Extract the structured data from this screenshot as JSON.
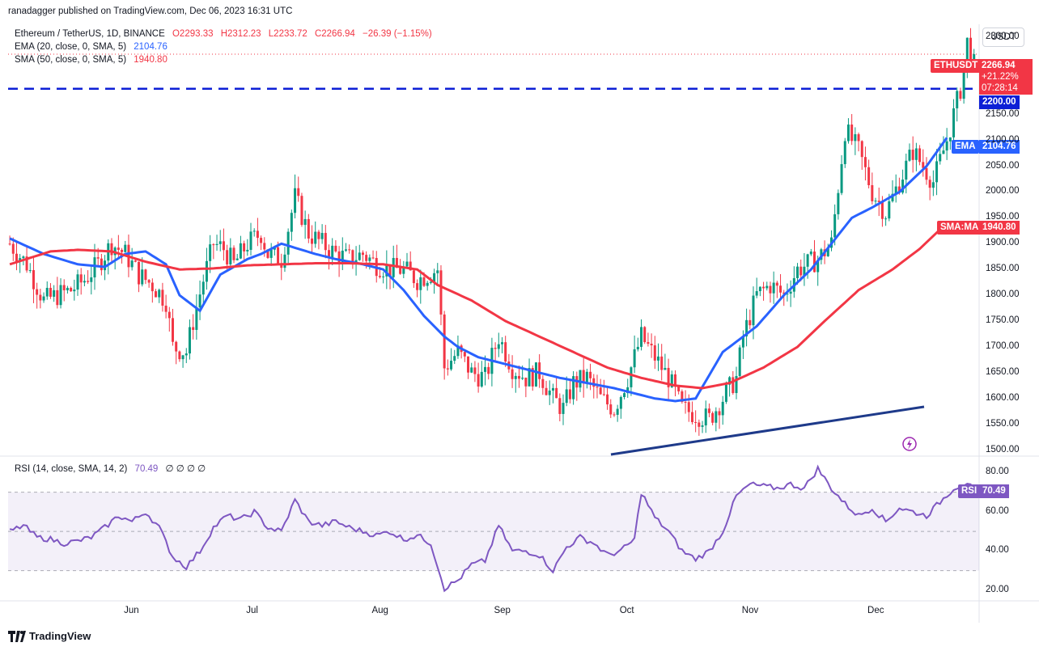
{
  "publish_line": "ranadagger published on TradingView.com, Dec 06, 2023 16:31 UTC",
  "header": {
    "symbol": "Ethereum / TetherUS, 1D, BINANCE",
    "open": "O2293.33",
    "high": "H2312.23",
    "low": "L2233.72",
    "close": "C2266.94",
    "change": "−26.39 (−1.15%)"
  },
  "indicators": {
    "ema": {
      "label": "EMA (20, close, 0, SMA, 5)",
      "value": "2104.76",
      "color": "#2962ff"
    },
    "sma": {
      "label": "SMA (50, close, 0, SMA, 5)",
      "value": "1940.80",
      "color": "#f23645"
    }
  },
  "currency_button": "USDT",
  "price_tags": {
    "ethusdt_label": "ETHUSDT",
    "price": "2266.94",
    "change_pct": "+21.22%",
    "countdown": "07:28:14",
    "level": "2200.00",
    "ema_label": "EMA",
    "ema_value": "2104.76",
    "sma_label": "SMA:MA",
    "sma_value": "1940.80"
  },
  "rsi": {
    "label": "RSI (14, close, SMA, 14, 2)",
    "value": "70.49",
    "extras": "∅ ∅ ∅ ∅",
    "tag_label": "RSI",
    "tag_value": "70.49",
    "color": "#7e57c2"
  },
  "branding": "TradingView",
  "colors": {
    "up": "#089981",
    "down": "#f23645",
    "level_line": "#0d1fd6",
    "trendline": "#1e3a8a"
  },
  "chart_data": [
    {
      "type": "candlestick",
      "title": "Ethereum / TetherUS, 1D, BINANCE",
      "y_ticks": [
        "2300.00",
        "2150.00",
        "2100.00",
        "2050.00",
        "2000.00",
        "1950.00",
        "1900.00",
        "1850.00",
        "1800.00",
        "1750.00",
        "1700.00",
        "1650.00",
        "1600.00",
        "1550.00",
        "1500.00"
      ],
      "ylim": [
        1490,
        2325
      ],
      "x_ticks": [
        "Jun",
        "Jul",
        "Aug",
        "Sep",
        "Oct",
        "Nov",
        "Dec"
      ],
      "horizontal_level": 2200,
      "trendline": {
        "from": [
          "Sep 21",
          1490
        ],
        "to": [
          "Dec 08",
          1572
        ]
      },
      "series": [
        {
          "name": "EMA",
          "description": "EMA (20, close, 0, SMA, 5)",
          "last": 2104.76,
          "waypoints": [
            [
              0,
              1910
            ],
            [
              10,
              1880
            ],
            [
              20,
              1860
            ],
            [
              28,
              1855
            ],
            [
              34,
              1880
            ],
            [
              40,
              1885
            ],
            [
              46,
              1860
            ],
            [
              50,
              1800
            ],
            [
              56,
              1770
            ],
            [
              62,
              1840
            ],
            [
              70,
              1870
            ],
            [
              74,
              1880
            ],
            [
              80,
              1900
            ],
            [
              90,
              1880
            ],
            [
              96,
              1870
            ],
            [
              104,
              1860
            ],
            [
              110,
              1850
            ],
            [
              116,
              1810
            ],
            [
              122,
              1760
            ],
            [
              128,
              1720
            ],
            [
              132,
              1700
            ],
            [
              138,
              1680
            ],
            [
              144,
              1670
            ],
            [
              150,
              1660
            ],
            [
              156,
              1650
            ],
            [
              162,
              1640
            ],
            [
              170,
              1630
            ],
            [
              178,
              1620
            ],
            [
              184,
              1610
            ],
            [
              190,
              1600
            ],
            [
              196,
              1595
            ],
            [
              202,
              1600
            ],
            [
              210,
              1690
            ],
            [
              220,
              1740
            ],
            [
              228,
              1800
            ],
            [
              236,
              1850
            ],
            [
              242,
              1900
            ],
            [
              248,
              1950
            ],
            [
              254,
              1970
            ],
            [
              262,
              2000
            ],
            [
              270,
              2050
            ],
            [
              276,
              2105
            ]
          ]
        },
        {
          "name": "SMA:MA",
          "description": "SMA (50, close, 0, SMA, 5)",
          "last": 1940.8,
          "waypoints": [
            [
              0,
              1860
            ],
            [
              12,
              1885
            ],
            [
              20,
              1888
            ],
            [
              30,
              1885
            ],
            [
              40,
              1865
            ],
            [
              50,
              1850
            ],
            [
              60,
              1852
            ],
            [
              70,
              1858
            ],
            [
              80,
              1860
            ],
            [
              90,
              1862
            ],
            [
              100,
              1862
            ],
            [
              110,
              1860
            ],
            [
              120,
              1850
            ],
            [
              126,
              1820
            ],
            [
              136,
              1790
            ],
            [
              146,
              1750
            ],
            [
              156,
              1720
            ],
            [
              166,
              1690
            ],
            [
              176,
              1660
            ],
            [
              186,
              1640
            ],
            [
              196,
              1625
            ],
            [
              204,
              1620
            ],
            [
              212,
              1630
            ],
            [
              222,
              1660
            ],
            [
              232,
              1700
            ],
            [
              240,
              1750
            ],
            [
              250,
              1810
            ],
            [
              260,
              1850
            ],
            [
              268,
              1890
            ],
            [
              276,
              1940
            ]
          ]
        }
      ],
      "candles_generated_from": "daily OHLC approximation following visible price path",
      "price_path": [
        [
          0,
          1900
        ],
        [
          5,
          1860
        ],
        [
          10,
          1790
        ],
        [
          14,
          1800
        ],
        [
          18,
          1810
        ],
        [
          22,
          1830
        ],
        [
          26,
          1860
        ],
        [
          30,
          1900
        ],
        [
          34,
          1880
        ],
        [
          38,
          1840
        ],
        [
          42,
          1820
        ],
        [
          46,
          1790
        ],
        [
          48,
          1700
        ],
        [
          52,
          1690
        ],
        [
          54,
          1750
        ],
        [
          57,
          1830
        ],
        [
          60,
          1900
        ],
        [
          63,
          1890
        ],
        [
          66,
          1860
        ],
        [
          70,
          1900
        ],
        [
          74,
          1920
        ],
        [
          76,
          1880
        ],
        [
          80,
          1870
        ],
        [
          84,
          1990
        ],
        [
          88,
          1920
        ],
        [
          92,
          1900
        ],
        [
          96,
          1880
        ],
        [
          100,
          1870
        ],
        [
          104,
          1880
        ],
        [
          108,
          1860
        ],
        [
          112,
          1850
        ],
        [
          116,
          1850
        ],
        [
          120,
          1830
        ],
        [
          126,
          1850
        ],
        [
          128,
          1660
        ],
        [
          132,
          1690
        ],
        [
          136,
          1650
        ],
        [
          140,
          1640
        ],
        [
          144,
          1720
        ],
        [
          148,
          1660
        ],
        [
          152,
          1640
        ],
        [
          156,
          1650
        ],
        [
          160,
          1600
        ],
        [
          163,
          1580
        ],
        [
          166,
          1630
        ],
        [
          170,
          1640
        ],
        [
          174,
          1600
        ],
        [
          178,
          1580
        ],
        [
          182,
          1640
        ],
        [
          186,
          1720
        ],
        [
          190,
          1680
        ],
        [
          194,
          1640
        ],
        [
          198,
          1580
        ],
        [
          202,
          1570
        ],
        [
          206,
          1560
        ],
        [
          210,
          1600
        ],
        [
          214,
          1640
        ],
        [
          216,
          1720
        ],
        [
          220,
          1800
        ],
        [
          224,
          1820
        ],
        [
          228,
          1800
        ],
        [
          232,
          1850
        ],
        [
          238,
          1870
        ],
        [
          242,
          1900
        ],
        [
          246,
          2120
        ],
        [
          250,
          2080
        ],
        [
          254,
          2000
        ],
        [
          258,
          1960
        ],
        [
          262,
          2020
        ],
        [
          266,
          2080
        ],
        [
          270,
          2040
        ],
        [
          272,
          2020
        ],
        [
          276,
          2100
        ],
        [
          280,
          2200
        ],
        [
          282,
          2290
        ],
        [
          284,
          2266
        ]
      ]
    },
    {
      "type": "line",
      "name": "RSI",
      "ylim": [
        15,
        88
      ],
      "y_ticks": [
        "80.00",
        "60.00",
        "40.00",
        "20.00"
      ],
      "band": [
        30,
        70
      ],
      "midline": 50,
      "last": 70.49,
      "waypoints": [
        [
          0,
          50
        ],
        [
          4,
          53
        ],
        [
          8,
          47
        ],
        [
          12,
          46
        ],
        [
          16,
          44
        ],
        [
          20,
          45
        ],
        [
          24,
          47
        ],
        [
          28,
          52
        ],
        [
          32,
          58
        ],
        [
          36,
          55
        ],
        [
          40,
          60
        ],
        [
          44,
          52
        ],
        [
          48,
          37
        ],
        [
          52,
          32
        ],
        [
          56,
          40
        ],
        [
          60,
          52
        ],
        [
          64,
          58
        ],
        [
          68,
          56
        ],
        [
          72,
          60
        ],
        [
          76,
          52
        ],
        [
          80,
          50
        ],
        [
          84,
          66
        ],
        [
          88,
          55
        ],
        [
          92,
          53
        ],
        [
          96,
          55
        ],
        [
          100,
          52
        ],
        [
          104,
          50
        ],
        [
          108,
          48
        ],
        [
          112,
          50
        ],
        [
          116,
          46
        ],
        [
          120,
          48
        ],
        [
          124,
          44
        ],
        [
          128,
          21
        ],
        [
          132,
          25
        ],
        [
          136,
          33
        ],
        [
          140,
          35
        ],
        [
          144,
          53
        ],
        [
          148,
          40
        ],
        [
          152,
          40
        ],
        [
          156,
          38
        ],
        [
          160,
          30
        ],
        [
          164,
          42
        ],
        [
          168,
          47
        ],
        [
          172,
          44
        ],
        [
          176,
          38
        ],
        [
          180,
          40
        ],
        [
          184,
          46
        ],
        [
          186,
          70
        ],
        [
          190,
          57
        ],
        [
          194,
          50
        ],
        [
          198,
          40
        ],
        [
          202,
          36
        ],
        [
          206,
          40
        ],
        [
          210,
          50
        ],
        [
          214,
          68
        ],
        [
          218,
          74
        ],
        [
          222,
          73
        ],
        [
          226,
          72
        ],
        [
          230,
          74
        ],
        [
          234,
          72
        ],
        [
          238,
          82
        ],
        [
          242,
          72
        ],
        [
          246,
          64
        ],
        [
          250,
          58
        ],
        [
          254,
          62
        ],
        [
          258,
          55
        ],
        [
          262,
          62
        ],
        [
          266,
          60
        ],
        [
          270,
          58
        ],
        [
          274,
          65
        ],
        [
          278,
          72
        ],
        [
          282,
          75
        ],
        [
          284,
          70.49
        ]
      ]
    }
  ]
}
